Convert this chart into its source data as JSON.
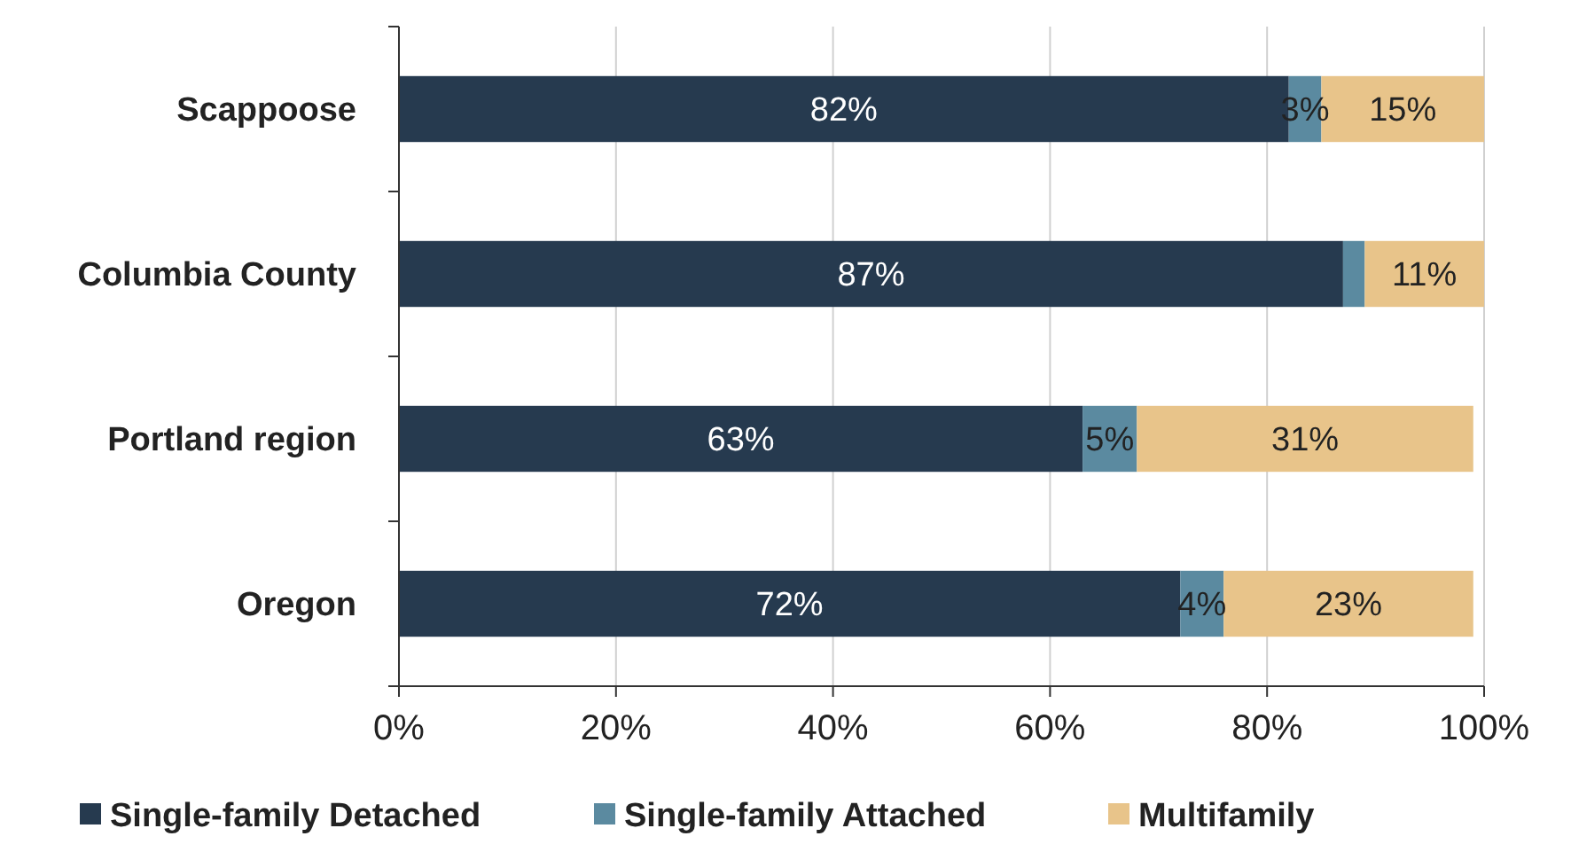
{
  "chart_data": {
    "type": "bar",
    "orientation": "horizontal",
    "stacked": true,
    "categories": [
      "Scappoose",
      "Columbia County",
      "Portland region",
      "Oregon"
    ],
    "series": [
      {
        "name": "Single-family Detached",
        "color": "#263a4f",
        "values": [
          82,
          87,
          63,
          72
        ],
        "value_labels": [
          "82%",
          "87%",
          "63%",
          "72%"
        ]
      },
      {
        "name": "Single-family Attached",
        "color": "#5b8aa0",
        "values": [
          3,
          2,
          5,
          4
        ],
        "value_labels": [
          "3%",
          null,
          "5%",
          "4%"
        ]
      },
      {
        "name": "Multifamily",
        "color": "#e8c48a",
        "values": [
          15,
          11,
          31,
          23
        ],
        "value_labels": [
          "15%",
          "11%",
          "31%",
          "23%"
        ]
      }
    ],
    "xlim": [
      0,
      100
    ],
    "xticks": [
      {
        "value": 0,
        "label": "0%"
      },
      {
        "value": 20,
        "label": "20%"
      },
      {
        "value": 40,
        "label": "40%"
      },
      {
        "value": 60,
        "label": "60%"
      },
      {
        "value": 80,
        "label": "80%"
      },
      {
        "value": 100,
        "label": "100%"
      }
    ],
    "grid": "x",
    "legend": "bottom"
  }
}
